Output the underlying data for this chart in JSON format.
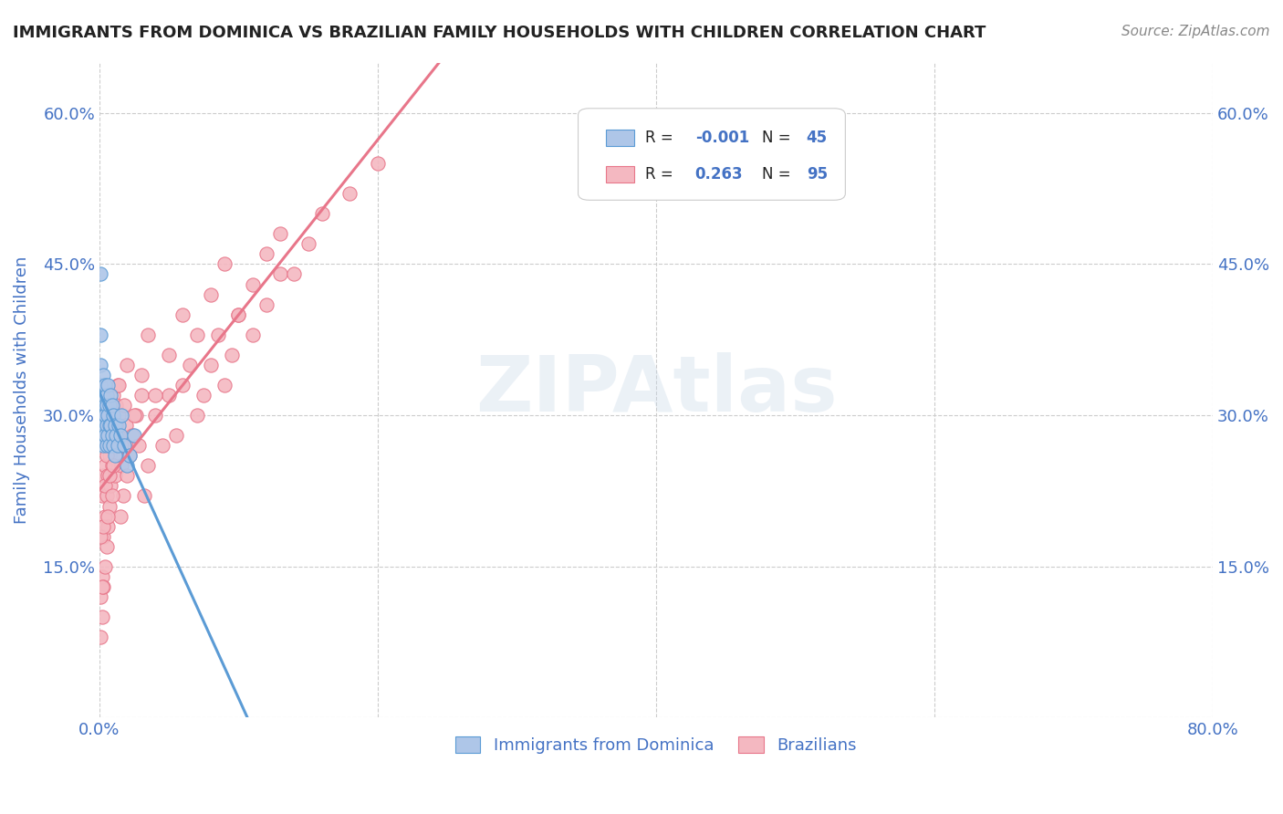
{
  "title": "IMMIGRANTS FROM DOMINICA VS BRAZILIAN FAMILY HOUSEHOLDS WITH CHILDREN CORRELATION CHART",
  "source": "Source: ZipAtlas.com",
  "ylabel": "Family Households with Children",
  "xlabel": "",
  "xlim": [
    0.0,
    0.8
  ],
  "ylim": [
    0.0,
    0.65
  ],
  "yticks": [
    0.0,
    0.15,
    0.3,
    0.45,
    0.6
  ],
  "ytick_labels": [
    "",
    "15.0%",
    "30.0%",
    "45.0%",
    "60.0%"
  ],
  "xticks": [
    0.0,
    0.2,
    0.4,
    0.6,
    0.8
  ],
  "xtick_labels": [
    "0.0%",
    "",
    "",
    "",
    "80.0%"
  ],
  "legend_R1": "-0.001",
  "legend_N1": "45",
  "legend_R2": "0.263",
  "legend_N2": "95",
  "dominica_color": "#aec6e8",
  "brazilians_color": "#f4b8c1",
  "dominica_edge": "#5b9bd5",
  "brazilians_edge": "#e8768a",
  "trend_dominica_color": "#5b9bd5",
  "trend_brazilians_color": "#e8768a",
  "watermark_color": "#c8d8e8",
  "title_color": "#222222",
  "axis_label_color": "#4472c4",
  "tick_color": "#4472c4",
  "background_color": "#ffffff",
  "grid_color": "#cccccc",
  "dominica_x": [
    0.001,
    0.001,
    0.001,
    0.001,
    0.001,
    0.002,
    0.002,
    0.002,
    0.002,
    0.003,
    0.003,
    0.003,
    0.003,
    0.003,
    0.004,
    0.004,
    0.004,
    0.004,
    0.005,
    0.005,
    0.005,
    0.005,
    0.006,
    0.006,
    0.006,
    0.007,
    0.007,
    0.007,
    0.008,
    0.008,
    0.009,
    0.009,
    0.01,
    0.01,
    0.011,
    0.011,
    0.012,
    0.013,
    0.014,
    0.015,
    0.016,
    0.018,
    0.02,
    0.022,
    0.025
  ],
  "dominica_y": [
    0.44,
    0.38,
    0.35,
    0.33,
    0.3,
    0.32,
    0.31,
    0.3,
    0.28,
    0.34,
    0.32,
    0.3,
    0.29,
    0.27,
    0.33,
    0.31,
    0.3,
    0.28,
    0.32,
    0.31,
    0.29,
    0.27,
    0.33,
    0.3,
    0.28,
    0.31,
    0.29,
    0.27,
    0.32,
    0.29,
    0.31,
    0.28,
    0.3,
    0.27,
    0.29,
    0.26,
    0.28,
    0.27,
    0.29,
    0.28,
    0.3,
    0.27,
    0.25,
    0.26,
    0.28
  ],
  "brazilians_x": [
    0.001,
    0.001,
    0.002,
    0.002,
    0.002,
    0.003,
    0.003,
    0.003,
    0.003,
    0.004,
    0.004,
    0.004,
    0.004,
    0.005,
    0.005,
    0.005,
    0.006,
    0.006,
    0.006,
    0.007,
    0.007,
    0.008,
    0.008,
    0.009,
    0.009,
    0.01,
    0.01,
    0.011,
    0.011,
    0.012,
    0.012,
    0.013,
    0.013,
    0.014,
    0.015,
    0.016,
    0.017,
    0.018,
    0.019,
    0.02,
    0.022,
    0.024,
    0.026,
    0.028,
    0.03,
    0.032,
    0.035,
    0.04,
    0.045,
    0.05,
    0.055,
    0.06,
    0.065,
    0.07,
    0.075,
    0.08,
    0.085,
    0.09,
    0.095,
    0.1,
    0.11,
    0.12,
    0.13,
    0.001,
    0.002,
    0.003,
    0.004,
    0.005,
    0.006,
    0.007,
    0.008,
    0.009,
    0.01,
    0.012,
    0.014,
    0.016,
    0.018,
    0.02,
    0.025,
    0.03,
    0.035,
    0.04,
    0.05,
    0.06,
    0.07,
    0.08,
    0.09,
    0.1,
    0.11,
    0.12,
    0.13,
    0.14,
    0.15,
    0.16,
    0.18,
    0.2
  ],
  "brazilians_y": [
    0.12,
    0.08,
    0.14,
    0.1,
    0.22,
    0.13,
    0.18,
    0.24,
    0.28,
    0.15,
    0.2,
    0.25,
    0.3,
    0.17,
    0.22,
    0.27,
    0.19,
    0.24,
    0.29,
    0.21,
    0.26,
    0.23,
    0.28,
    0.25,
    0.3,
    0.27,
    0.32,
    0.24,
    0.29,
    0.26,
    0.31,
    0.28,
    0.33,
    0.3,
    0.2,
    0.25,
    0.22,
    0.27,
    0.29,
    0.24,
    0.26,
    0.28,
    0.3,
    0.27,
    0.32,
    0.22,
    0.25,
    0.3,
    0.27,
    0.32,
    0.28,
    0.33,
    0.35,
    0.3,
    0.32,
    0.35,
    0.38,
    0.33,
    0.36,
    0.4,
    0.38,
    0.41,
    0.44,
    0.18,
    0.13,
    0.19,
    0.23,
    0.26,
    0.2,
    0.24,
    0.28,
    0.22,
    0.25,
    0.29,
    0.33,
    0.27,
    0.31,
    0.35,
    0.3,
    0.34,
    0.38,
    0.32,
    0.36,
    0.4,
    0.38,
    0.42,
    0.45,
    0.4,
    0.43,
    0.46,
    0.48,
    0.44,
    0.47,
    0.5,
    0.52,
    0.55
  ]
}
